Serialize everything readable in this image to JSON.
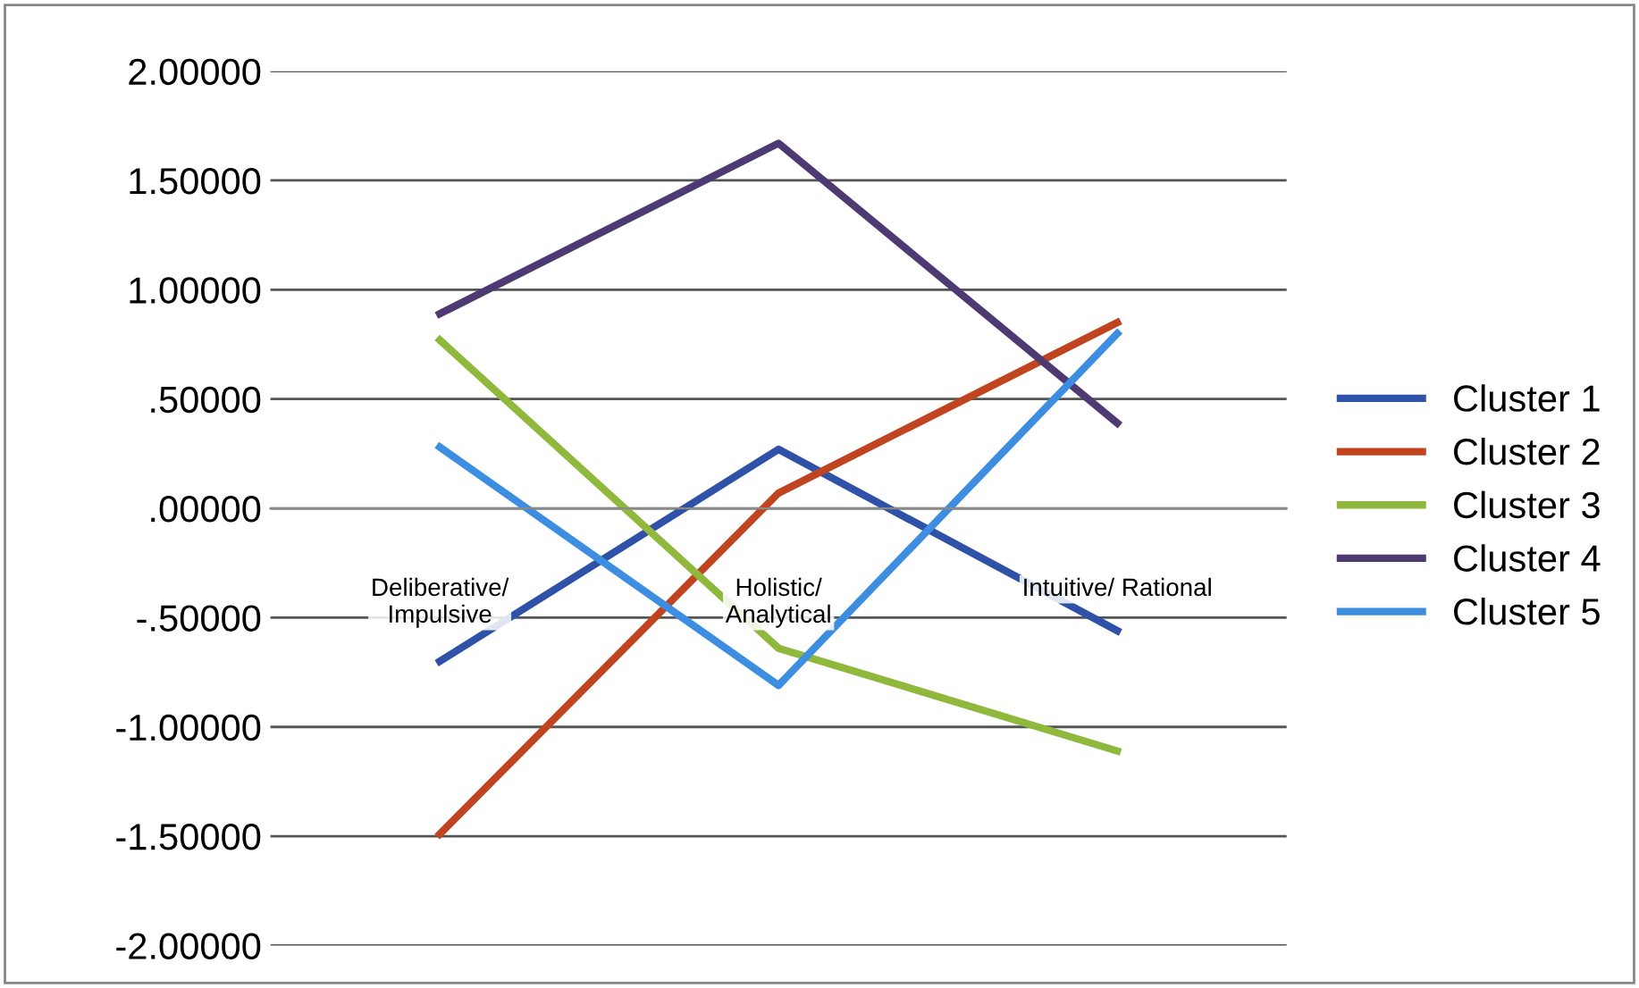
{
  "chart_data": {
    "type": "line",
    "categories": [
      "Deliberative/\nImpulsive",
      "Holistic/\nAnalytical",
      "Intuitive/ Rational"
    ],
    "series": [
      {
        "name": "Cluster 1",
        "color": "#2f52a8",
        "values": [
          -0.7,
          0.27,
          -0.56
        ]
      },
      {
        "name": "Cluster 2",
        "color": "#c0441f",
        "values": [
          -1.49,
          0.07,
          0.85
        ]
      },
      {
        "name": "Cluster 3",
        "color": "#8fb83c",
        "values": [
          0.77,
          -0.64,
          -1.11
        ]
      },
      {
        "name": "Cluster 4",
        "color": "#4d3a72",
        "values": [
          0.89,
          1.67,
          0.39
        ]
      },
      {
        "name": "Cluster 5",
        "color": "#3d8ee0",
        "values": [
          0.28,
          -0.81,
          0.8
        ]
      }
    ],
    "ylim": [
      -2,
      2
    ],
    "yticks": [
      {
        "value": -2,
        "label": "-2.00000"
      },
      {
        "value": -1.5,
        "label": "-1.50000"
      },
      {
        "value": -1,
        "label": "-1.00000"
      },
      {
        "value": -0.5,
        "label": "-.50000"
      },
      {
        "value": 0,
        "label": ".00000"
      },
      {
        "value": 0.5,
        "label": ".50000"
      },
      {
        "value": 1,
        "label": "1.00000"
      },
      {
        "value": 1.5,
        "label": "1.50000"
      },
      {
        "value": 2,
        "label": "2.00000"
      }
    ],
    "grid": "y",
    "legend": "right",
    "marker": "none",
    "line_style": "solid"
  }
}
